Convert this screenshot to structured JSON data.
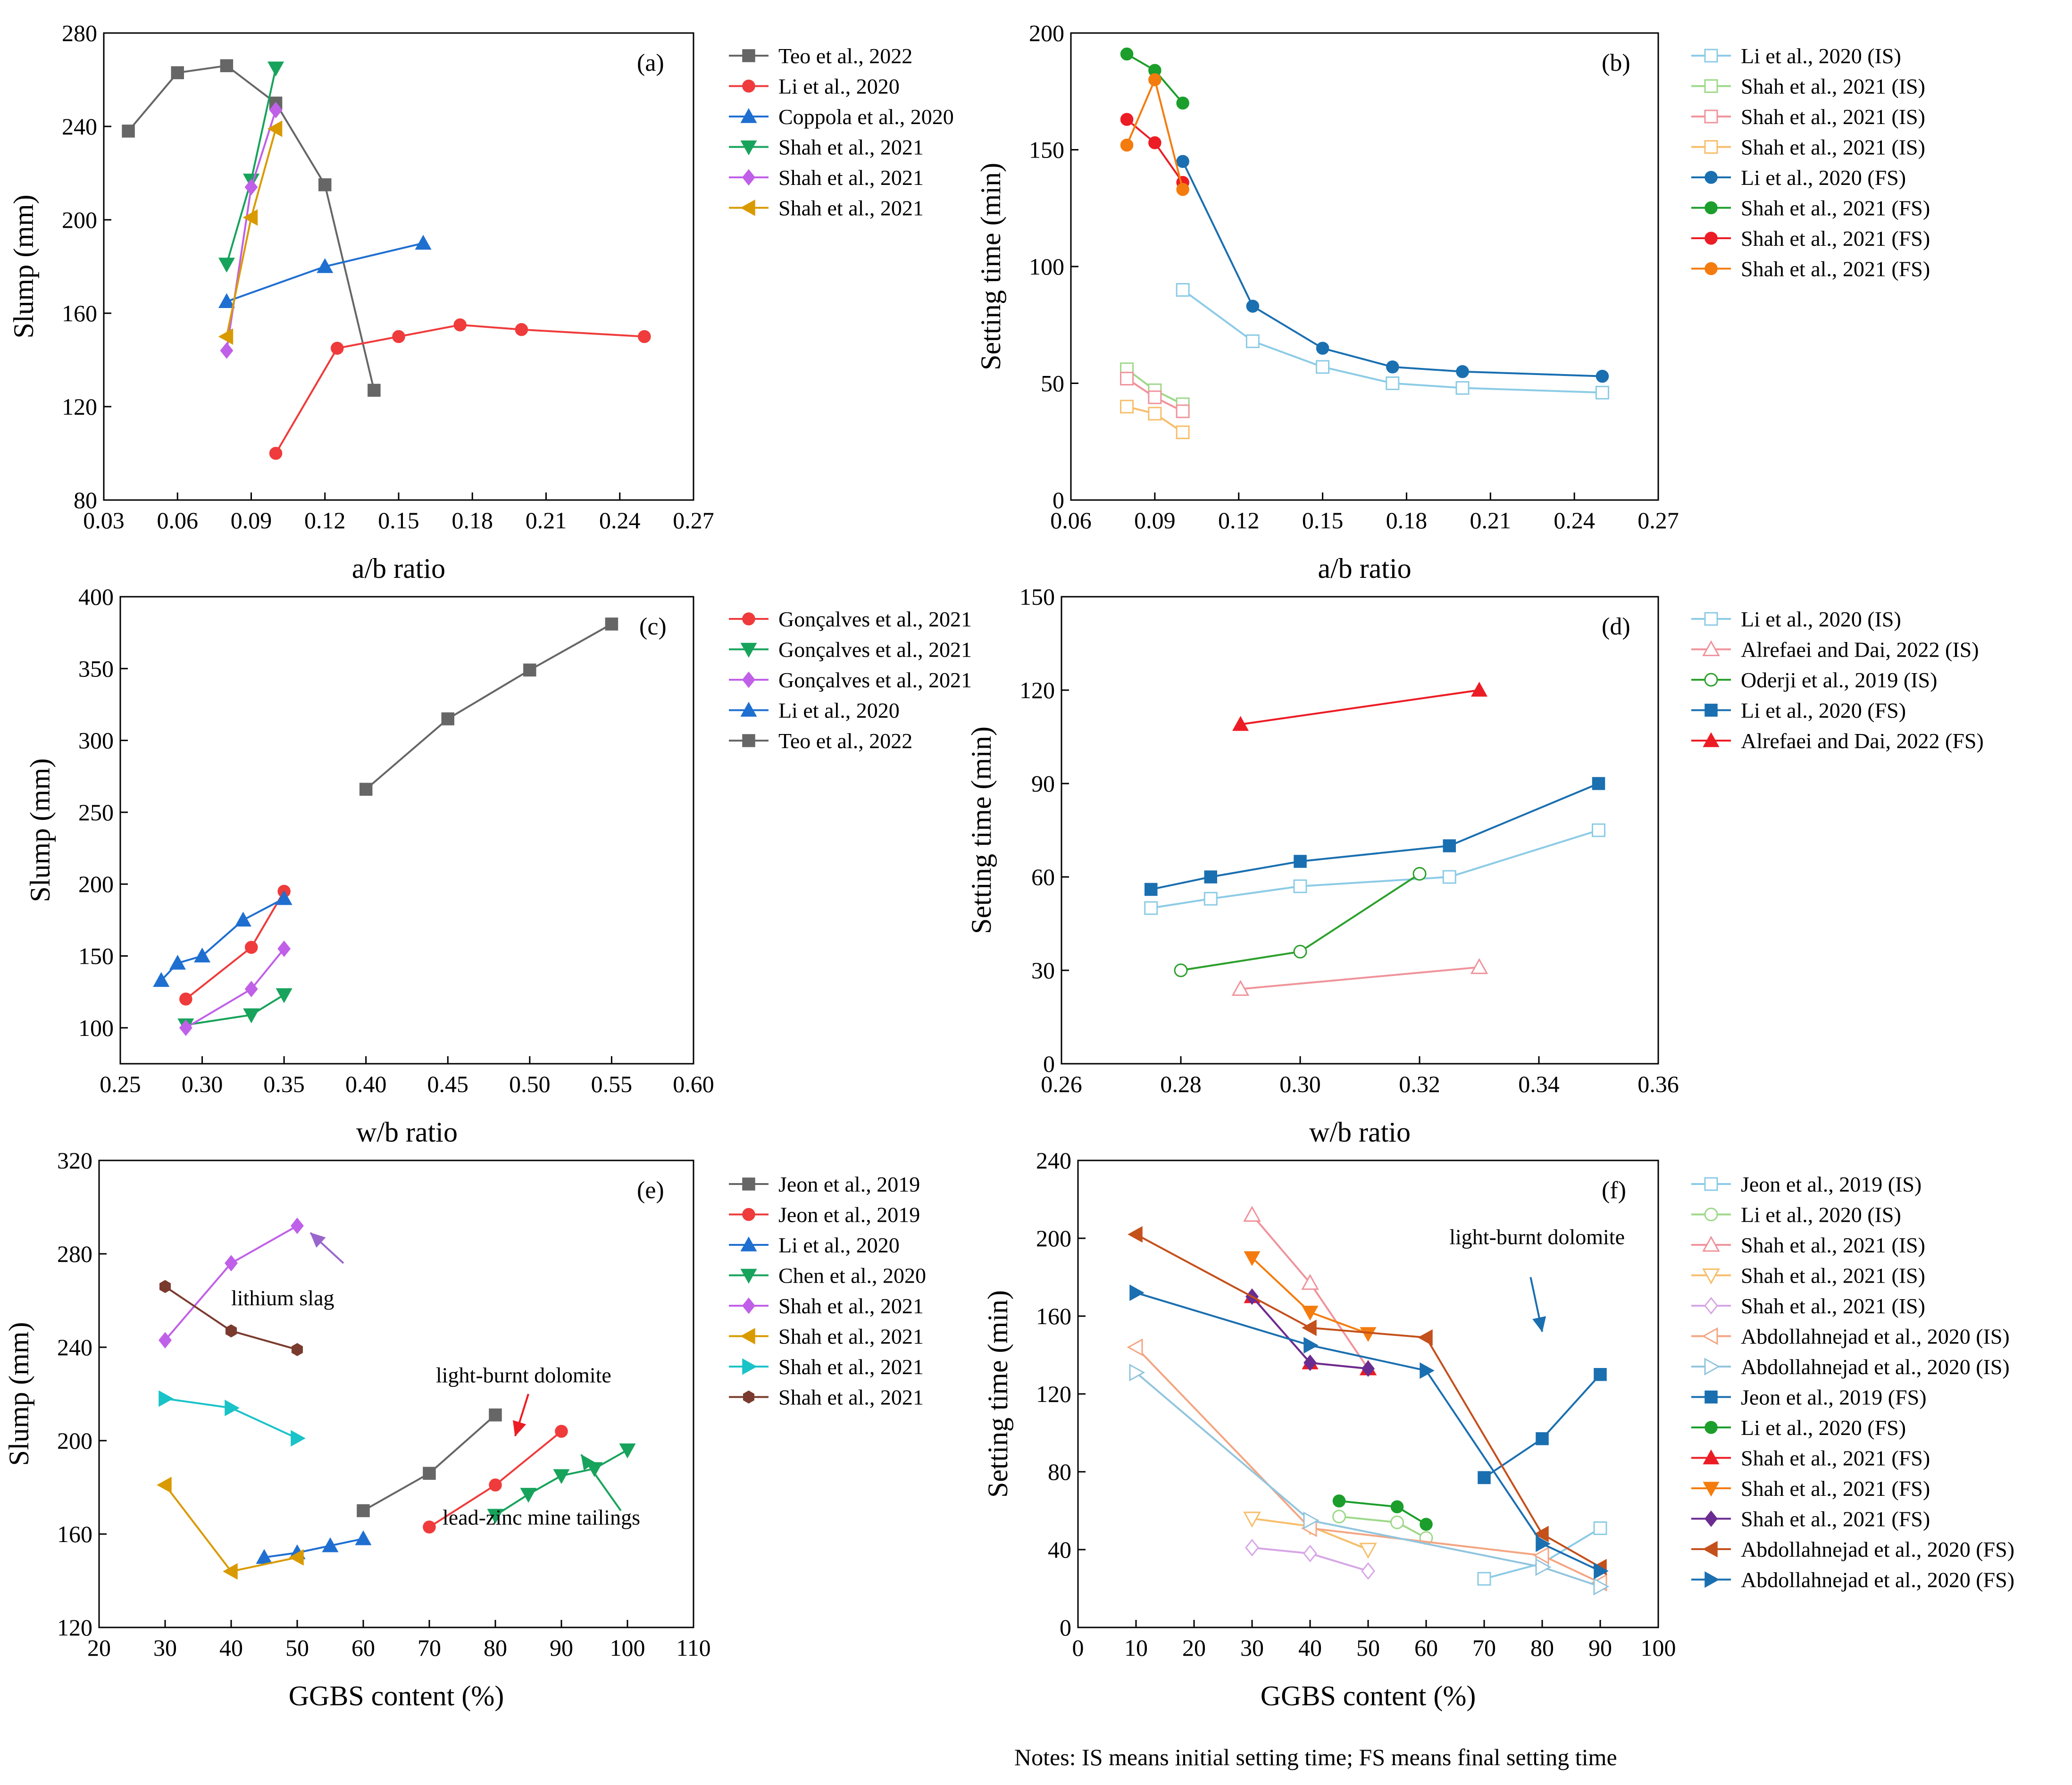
{
  "figure_note": "Notes: IS means initial setting time; FS means final setting time",
  "chart_data": [
    {
      "panel": "(a)",
      "type": "line",
      "xlabel": "a/b ratio",
      "ylabel": "Slump (mm)",
      "xlim": [
        0.03,
        0.27
      ],
      "ylim": [
        80,
        280
      ],
      "xticks": [
        "0.03",
        "0.06",
        "0.09",
        "0.12",
        "0.15",
        "0.18",
        "0.21",
        "0.24",
        "0.27"
      ],
      "yticks": [
        "80",
        "120",
        "160",
        "200",
        "240",
        "280"
      ],
      "series": [
        {
          "name": "Teo et al., 2022",
          "color": "#666666",
          "marker": "square",
          "fill": "solid",
          "x": [
            0.04,
            0.06,
            0.08,
            0.1,
            0.12,
            0.14
          ],
          "y": [
            238,
            263,
            266,
            250,
            215,
            127
          ]
        },
        {
          "name": "Li et al., 2020",
          "color": "#ef3b3b",
          "marker": "circle",
          "fill": "solid",
          "x": [
            0.1,
            0.125,
            0.15,
            0.175,
            0.2,
            0.25
          ],
          "y": [
            100,
            145,
            150,
            155,
            153,
            150
          ]
        },
        {
          "name": "Coppola et al., 2020",
          "color": "#1f6fd1",
          "marker": "triangle-up",
          "fill": "solid",
          "x": [
            0.08,
            0.12,
            0.16
          ],
          "y": [
            165,
            180,
            190
          ]
        },
        {
          "name": "Shah et al., 2021",
          "color": "#17a35b",
          "marker": "triangle-down",
          "fill": "solid",
          "x": [
            0.08,
            0.09,
            0.1
          ],
          "y": [
            181,
            217,
            265
          ]
        },
        {
          "name": "Shah et al., 2021",
          "color": "#c060e8",
          "marker": "diamond",
          "fill": "solid",
          "x": [
            0.08,
            0.09,
            0.1
          ],
          "y": [
            144,
            214,
            247
          ]
        },
        {
          "name": "Shah et al., 2021",
          "color": "#d99a00",
          "marker": "triangle-left",
          "fill": "solid",
          "x": [
            0.08,
            0.09,
            0.1
          ],
          "y": [
            150,
            201,
            239
          ]
        }
      ],
      "annotations": []
    },
    {
      "panel": "(b)",
      "type": "line",
      "xlabel": "a/b ratio",
      "ylabel": "Setting time (min)",
      "xlim": [
        0.06,
        0.27
      ],
      "ylim": [
        0,
        200
      ],
      "xticks": [
        "0.06",
        "0.09",
        "0.12",
        "0.15",
        "0.18",
        "0.21",
        "0.24",
        "0.27"
      ],
      "yticks": [
        "0",
        "50",
        "100",
        "150",
        "200"
      ],
      "series": [
        {
          "name": "Li et al., 2020 (IS)",
          "color": "#8ccbe6",
          "marker": "square",
          "fill": "open",
          "x": [
            0.1,
            0.125,
            0.15,
            0.175,
            0.2,
            0.25
          ],
          "y": [
            90,
            68,
            57,
            50,
            48,
            46
          ]
        },
        {
          "name": "Shah et al., 2021 (IS)",
          "color": "#9ed88a",
          "marker": "square",
          "fill": "open",
          "x": [
            0.08,
            0.09,
            0.1
          ],
          "y": [
            56,
            47,
            41
          ]
        },
        {
          "name": "Shah et al., 2021 (IS)",
          "color": "#f0939b",
          "marker": "square",
          "fill": "open",
          "x": [
            0.08,
            0.09,
            0.1
          ],
          "y": [
            52,
            44,
            38
          ]
        },
        {
          "name": "Shah et al., 2021 (IS)",
          "color": "#f7be6b",
          "marker": "square",
          "fill": "open",
          "x": [
            0.08,
            0.09,
            0.1
          ],
          "y": [
            40,
            37,
            29
          ]
        },
        {
          "name": "Li et al., 2020 (FS)",
          "color": "#1a6fb0",
          "marker": "circle",
          "fill": "solid",
          "x": [
            0.1,
            0.125,
            0.15,
            0.175,
            0.2,
            0.25
          ],
          "y": [
            145,
            83,
            65,
            57,
            55,
            53
          ]
        },
        {
          "name": "Shah et al., 2021 (FS)",
          "color": "#1b9e2b",
          "marker": "circle",
          "fill": "solid",
          "x": [
            0.08,
            0.09,
            0.1
          ],
          "y": [
            191,
            184,
            170
          ]
        },
        {
          "name": "Shah et al., 2021 (FS)",
          "color": "#ec1c24",
          "marker": "circle",
          "fill": "solid",
          "x": [
            0.08,
            0.09,
            0.1
          ],
          "y": [
            163,
            153,
            136
          ]
        },
        {
          "name": "Shah et al., 2021 (FS)",
          "color": "#f47c0e",
          "marker": "circle",
          "fill": "solid",
          "x": [
            0.08,
            0.09,
            0.1
          ],
          "y": [
            152,
            180,
            133
          ]
        }
      ],
      "annotations": []
    },
    {
      "panel": "(c)",
      "type": "line",
      "xlabel": "w/b ratio",
      "ylabel": "Slump (mm)",
      "xlim": [
        0.25,
        0.6
      ],
      "ylim": [
        75,
        400
      ],
      "xticks": [
        "0.25",
        "0.30",
        "0.35",
        "0.40",
        "0.45",
        "0.50",
        "0.55",
        "0.60"
      ],
      "yticks": [
        "100",
        "150",
        "200",
        "250",
        "300",
        "350",
        "400"
      ],
      "series": [
        {
          "name": "Gonçalves et al., 2021",
          "color": "#ef3b3b",
          "marker": "circle",
          "fill": "solid",
          "x": [
            0.29,
            0.33,
            0.35
          ],
          "y": [
            120,
            156,
            195
          ]
        },
        {
          "name": "Gonçalves et al., 2021",
          "color": "#17a35b",
          "marker": "triangle-down",
          "fill": "solid",
          "x": [
            0.29,
            0.33,
            0.35
          ],
          "y": [
            102,
            109,
            123
          ]
        },
        {
          "name": "Gonçalves et al., 2021",
          "color": "#c060e8",
          "marker": "diamond",
          "fill": "solid",
          "x": [
            0.29,
            0.33,
            0.35
          ],
          "y": [
            100,
            127,
            155
          ]
        },
        {
          "name": "Li et al., 2020",
          "color": "#1f6fd1",
          "marker": "triangle-up",
          "fill": "solid",
          "x": [
            0.275,
            0.285,
            0.3,
            0.325,
            0.35
          ],
          "y": [
            133,
            145,
            150,
            175,
            190
          ]
        },
        {
          "name": "Teo et al., 2022",
          "color": "#666666",
          "marker": "square",
          "fill": "solid",
          "x": [
            0.4,
            0.45,
            0.5,
            0.55
          ],
          "y": [
            266,
            315,
            349,
            381
          ]
        }
      ],
      "annotations": []
    },
    {
      "panel": "(d)",
      "type": "line",
      "xlabel": "w/b ratio",
      "ylabel": "Setting time (min)",
      "xlim": [
        0.26,
        0.36
      ],
      "ylim": [
        0,
        150
      ],
      "xticks": [
        "0.26",
        "0.28",
        "0.30",
        "0.32",
        "0.34",
        "0.36"
      ],
      "yticks": [
        "0",
        "30",
        "60",
        "90",
        "120",
        "150"
      ],
      "series": [
        {
          "name": "Li et al., 2020 (IS)",
          "color": "#8ccbe6",
          "marker": "square",
          "fill": "open",
          "x": [
            0.275,
            0.285,
            0.3,
            0.325,
            0.35
          ],
          "y": [
            50,
            53,
            57,
            60,
            75
          ]
        },
        {
          "name": "Alrefaei and Dai, 2022 (IS)",
          "color": "#f0939b",
          "marker": "triangle-up",
          "fill": "open",
          "x": [
            0.29,
            0.33
          ],
          "y": [
            24,
            31
          ]
        },
        {
          "name": "Oderji et al., 2019 (IS)",
          "color": "#2ca02c",
          "marker": "circle",
          "fill": "open",
          "x": [
            0.28,
            0.3,
            0.32
          ],
          "y": [
            30,
            36,
            61
          ]
        },
        {
          "name": "Li et al., 2020 (FS)",
          "color": "#1a6fb0",
          "marker": "square",
          "fill": "solid",
          "x": [
            0.275,
            0.285,
            0.3,
            0.325,
            0.35
          ],
          "y": [
            56,
            60,
            65,
            70,
            90
          ]
        },
        {
          "name": "Alrefaei and Dai, 2022 (FS)",
          "color": "#ec1c24",
          "marker": "triangle-up",
          "fill": "solid",
          "x": [
            0.29,
            0.33
          ],
          "y": [
            109,
            120
          ]
        }
      ],
      "annotations": []
    },
    {
      "panel": "(e)",
      "type": "line",
      "xlabel": "GGBS content (%)",
      "ylabel": "Slump (mm)",
      "xlim": [
        20,
        110
      ],
      "ylim": [
        120,
        320
      ],
      "xticks": [
        "20",
        "30",
        "40",
        "50",
        "60",
        "70",
        "80",
        "90",
        "100",
        "110"
      ],
      "yticks": [
        "120",
        "160",
        "200",
        "240",
        "280",
        "320"
      ],
      "series": [
        {
          "name": "Jeon et al., 2019",
          "color": "#666666",
          "marker": "square",
          "fill": "solid",
          "x": [
            60,
            70,
            80
          ],
          "y": [
            170,
            186,
            211
          ]
        },
        {
          "name": "Jeon et al., 2019",
          "color": "#ef3b3b",
          "marker": "circle",
          "fill": "solid",
          "x": [
            70,
            80,
            90
          ],
          "y": [
            163,
            181,
            204
          ]
        },
        {
          "name": "Li et al., 2020",
          "color": "#1f6fd1",
          "marker": "triangle-up",
          "fill": "solid",
          "x": [
            45,
            50,
            55,
            60
          ],
          "y": [
            150,
            152,
            155,
            158
          ]
        },
        {
          "name": "Chen et al., 2020",
          "color": "#17a35b",
          "marker": "triangle-down",
          "fill": "solid",
          "x": [
            80,
            85,
            90,
            95,
            100
          ],
          "y": [
            168,
            177,
            185,
            188,
            196
          ]
        },
        {
          "name": "Shah et al., 2021",
          "color": "#c060e8",
          "marker": "diamond",
          "fill": "solid",
          "x": [
            30,
            40,
            50
          ],
          "y": [
            243,
            276,
            292
          ]
        },
        {
          "name": "Shah et al., 2021",
          "color": "#d99a00",
          "marker": "triangle-left",
          "fill": "solid",
          "x": [
            30,
            40,
            50
          ],
          "y": [
            181,
            144,
            150
          ]
        },
        {
          "name": "Shah et al., 2021",
          "color": "#19c3c8",
          "marker": "triangle-right",
          "fill": "solid",
          "x": [
            30,
            40,
            50
          ],
          "y": [
            218,
            214,
            201
          ]
        },
        {
          "name": "Shah et al., 2021",
          "color": "#7a3b2e",
          "marker": "hexagon",
          "fill": "solid",
          "x": [
            30,
            40,
            50
          ],
          "y": [
            266,
            247,
            239
          ]
        }
      ],
      "annotations": [
        {
          "text": "lithium slag",
          "tx": 40,
          "ty": 258,
          "ax1": 57,
          "ay1": 276,
          "ax2": 52,
          "ay2": 289,
          "color": "#9966cc"
        },
        {
          "text": "light-burnt dolomite",
          "tx": 71,
          "ty": 225,
          "ax1": 85,
          "ay1": 220,
          "ax2": 83,
          "ay2": 202,
          "color": "#ec1c24"
        },
        {
          "text": "lead-zinc mine tailings",
          "tx": 72,
          "ty": 164,
          "ax1": 99,
          "ay1": 170,
          "ax2": 93,
          "ay2": 194,
          "color": "#17a35b"
        }
      ]
    },
    {
      "panel": "(f)",
      "type": "line",
      "xlabel": "GGBS content (%)",
      "ylabel": "Setting time (min)",
      "xlim": [
        0,
        100
      ],
      "ylim": [
        0,
        240
      ],
      "xticks": [
        "0",
        "10",
        "20",
        "30",
        "40",
        "50",
        "60",
        "70",
        "80",
        "90",
        "100"
      ],
      "yticks": [
        "0",
        "40",
        "80",
        "120",
        "160",
        "200",
        "240"
      ],
      "series": [
        {
          "name": "Jeon et al., 2019 (IS)",
          "color": "#8ccbe6",
          "marker": "square",
          "fill": "open",
          "x": [
            70,
            80,
            90
          ],
          "y": [
            25,
            33,
            51
          ]
        },
        {
          "name": "Li et al., 2020 (IS)",
          "color": "#9ed88a",
          "marker": "circle",
          "fill": "open",
          "x": [
            45,
            55,
            60
          ],
          "y": [
            57,
            54,
            46
          ]
        },
        {
          "name": "Shah et al., 2021 (IS)",
          "color": "#f0939b",
          "marker": "triangle-up",
          "fill": "open",
          "x": [
            30,
            40,
            50
          ],
          "y": [
            212,
            177,
            133
          ]
        },
        {
          "name": "Shah et al., 2021 (IS)",
          "color": "#f7be6b",
          "marker": "triangle-down",
          "fill": "open",
          "x": [
            30,
            40,
            50
          ],
          "y": [
            56,
            52,
            40
          ]
        },
        {
          "name": "Shah et al., 2021 (IS)",
          "color": "#d7a6e6",
          "marker": "diamond",
          "fill": "open",
          "x": [
            30,
            40,
            50
          ],
          "y": [
            41,
            38,
            29
          ]
        },
        {
          "name": "Abdollahnejad et al., 2020 (IS)",
          "color": "#f4a582",
          "marker": "triangle-left",
          "fill": "open",
          "x": [
            10,
            40,
            80,
            90
          ],
          "y": [
            144,
            51,
            37,
            23
          ]
        },
        {
          "name": "Abdollahnejad et al., 2020 (IS)",
          "color": "#92c5de",
          "marker": "triangle-right",
          "fill": "open",
          "x": [
            10,
            40,
            80,
            90
          ],
          "y": [
            131,
            55,
            31,
            21
          ]
        },
        {
          "name": "Jeon et al., 2019 (FS)",
          "color": "#1a6fb0",
          "marker": "square",
          "fill": "solid",
          "x": [
            70,
            80,
            90
          ],
          "y": [
            77,
            97,
            130
          ]
        },
        {
          "name": "Li et al., 2020 (FS)",
          "color": "#1b9e2b",
          "marker": "circle",
          "fill": "solid",
          "x": [
            45,
            55,
            60
          ],
          "y": [
            65,
            62,
            53
          ]
        },
        {
          "name": "Shah et al., 2021 (FS)",
          "color": "#ec1c24",
          "marker": "triangle-up",
          "fill": "solid",
          "x": [
            30,
            40,
            50
          ],
          "y": [
            170,
            136,
            133
          ]
        },
        {
          "name": "Shah et al., 2021 (FS)",
          "color": "#f47c0e",
          "marker": "triangle-down",
          "fill": "solid",
          "x": [
            30,
            40,
            50
          ],
          "y": [
            190,
            162,
            151
          ]
        },
        {
          "name": "Shah et al., 2021 (FS)",
          "color": "#6a2c91",
          "marker": "diamond",
          "fill": "solid",
          "x": [
            30,
            40,
            50
          ],
          "y": [
            170,
            136,
            133
          ]
        },
        {
          "name": "Abdollahnejad et al., 2020 (FS)",
          "color": "#c4501b",
          "marker": "triangle-left",
          "fill": "solid",
          "x": [
            10,
            40,
            60,
            80,
            90
          ],
          "y": [
            202,
            154,
            149,
            48,
            31
          ]
        },
        {
          "name": "Abdollahnejad et al., 2020 (FS)",
          "color": "#1a6fb0",
          "marker": "triangle-right",
          "fill": "solid",
          "x": [
            10,
            40,
            60,
            80,
            90
          ],
          "y": [
            172,
            145,
            132,
            43,
            29
          ]
        }
      ],
      "annotations": [
        {
          "text": "light-burnt dolomite",
          "tx": 64,
          "ty": 197,
          "ax1": 78,
          "ay1": 180,
          "ax2": 80,
          "ay2": 152,
          "color": "#1a6fb0"
        }
      ]
    }
  ]
}
